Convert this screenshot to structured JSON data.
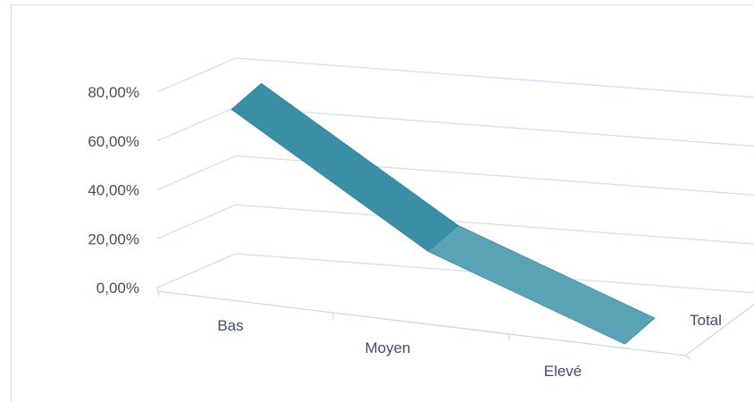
{
  "chart_data": {
    "type": "line",
    "is_3d": true,
    "title": "",
    "categories": [
      "Bas",
      "Moyen",
      "Elevé"
    ],
    "depth_categories": [
      "Total"
    ],
    "series": [
      {
        "values": [
          0.74,
          0.28,
          0.0
        ]
      }
    ],
    "y_ticks": [
      "0,00%",
      "20,00%",
      "40,00%",
      "60,00%",
      "80,00%"
    ],
    "ylim": [
      0,
      0.8
    ],
    "y_format": "percent_comma_2",
    "grid": true,
    "colors": {
      "ribbon_front": "#3a8ea6",
      "ribbon_top": "#5aa3b6",
      "grid": "#d5dff0",
      "axis_text": "#3f4f6b"
    }
  }
}
